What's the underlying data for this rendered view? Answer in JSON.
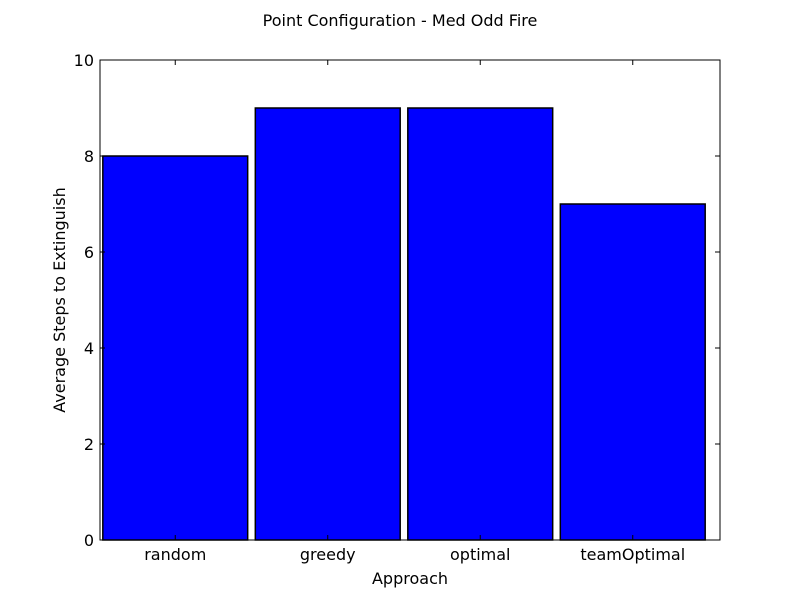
{
  "chart_data": {
    "type": "bar",
    "title": "Point Configuration - Med Odd Fire",
    "xlabel": "Approach",
    "ylabel": "Average Steps to Extinguish",
    "categories": [
      "random",
      "greedy",
      "optimal",
      "teamOptimal"
    ],
    "values": [
      8,
      9,
      9,
      7
    ],
    "ylim": [
      0,
      10
    ],
    "yticks": [
      "0",
      "2",
      "4",
      "6",
      "8",
      "10"
    ],
    "grid": false,
    "legend": "none",
    "bar_color": "#0000ff",
    "edge_color": "#000000"
  }
}
